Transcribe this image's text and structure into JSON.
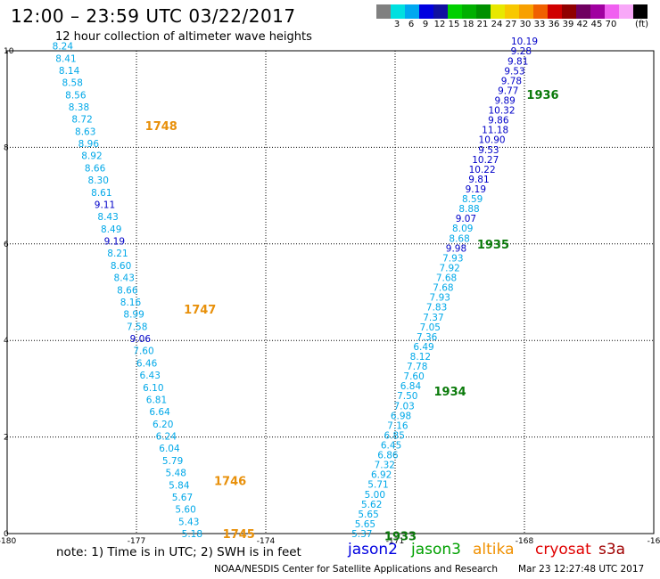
{
  "title": "12:00 – 23:59 UTC 03/22/2017",
  "subtitle": "12 hour collection of altimeter wave heights",
  "colorbar": {
    "colors": [
      "#808080",
      "#00e0e0",
      "#00a8f0",
      "#0000e0",
      "#1010a0",
      "#00d000",
      "#00b000",
      "#009000",
      "#e8e800",
      "#f8c800",
      "#f8a000",
      "#f06000",
      "#d00000",
      "#900000",
      "#700060",
      "#a000a0",
      "#f060f0",
      "#f8a8f8",
      "#000000"
    ],
    "labels": [
      "3",
      "6",
      "9",
      "12",
      "15",
      "18",
      "21",
      "24",
      "27",
      "30",
      "33",
      "36",
      "39",
      "42",
      "45",
      "70"
    ],
    "unit": "(ft)"
  },
  "axes": {
    "x_ticks": [
      "-180",
      "-177",
      "-174",
      "-171",
      "-168",
      "-16"
    ],
    "y_ticks": [
      "10",
      "8",
      "6",
      "4",
      "2",
      "0"
    ],
    "xlim": [
      -180,
      -165
    ],
    "ylim": [
      0,
      10
    ]
  },
  "time_labels": [
    {
      "text": "1748",
      "color": "#e8900a",
      "lon": -176.8,
      "lat": 8.45
    },
    {
      "text": "1747",
      "color": "#e8900a",
      "lon": -175.9,
      "lat": 4.65
    },
    {
      "text": "1746",
      "color": "#e8900a",
      "lon": -175.2,
      "lat": 1.1
    },
    {
      "text": "1745",
      "color": "#e8900a",
      "lon": -175.0,
      "lat": 0.0
    },
    {
      "text": "1936",
      "color": "#0a7a0a",
      "lon": -167.95,
      "lat": 9.1
    },
    {
      "text": "1935",
      "color": "#0a7a0a",
      "lon": -169.1,
      "lat": 6.0
    },
    {
      "text": "1934",
      "color": "#0a7a0a",
      "lon": -170.1,
      "lat": 2.95
    },
    {
      "text": "1933",
      "color": "#0a7a0a",
      "lon": -171.25,
      "lat": -0.05
    }
  ],
  "tracks": {
    "altika_west": {
      "satellite": "altika",
      "lon_start": -178.71,
      "lon_end": -175.71,
      "lat_start": 10.1,
      "lat_end": 0.0,
      "values": [
        "8.24",
        "8.41",
        "8.14",
        "8.58",
        "8.56",
        "8.38",
        "8.72",
        "8.63",
        "8.96",
        "8.92",
        "8.66",
        "8.30",
        "8.61",
        "9.11",
        "8.43",
        "8.49",
        "9.19",
        "8.21",
        "8.60",
        "8.43",
        "8.66",
        "8.16",
        "8.99",
        "7.58",
        "9.06",
        "7.60",
        "6.46",
        "6.43",
        "6.10",
        "6.81",
        "6.64",
        "6.20",
        "6.24",
        "6.04",
        "5.79",
        "5.48",
        "5.84",
        "5.67",
        "5.60",
        "5.43",
        "5.18"
      ]
    },
    "jason3_east": {
      "satellite": "jason3",
      "lon_start": -168.0,
      "lon_end": -171.77,
      "lat_start": 10.2,
      "lat_end": 0.0,
      "values": [
        "10.19",
        "9.28",
        "9.81",
        "9.53",
        "9.78",
        "9.77",
        "9.89",
        "10.32",
        "9.86",
        "11.18",
        "10.90",
        "9.53",
        "10.27",
        "10.22",
        "9.81",
        "9.19",
        "8.59",
        "8.88",
        "9.07",
        "8.09",
        "8.68",
        "9.98",
        "7.93",
        "7.92",
        "7.68",
        "7.68",
        "7.93",
        "7.83",
        "7.37",
        "7.05",
        "7.36",
        "6.49",
        "8.12",
        "7.78",
        "7.60",
        "6.84",
        "7.50",
        "7.03",
        "6.98",
        "7.16",
        "6.85",
        "6.45",
        "6.86",
        "7.32",
        "6.92",
        "5.71",
        "5.00",
        "5.62",
        "5.65",
        "5.65",
        "5.37"
      ]
    }
  },
  "legend_note": "note: 1) Time is in UTC; 2) SWH is in feet",
  "satellites": [
    {
      "name": "jason2",
      "color": "#0000e0"
    },
    {
      "name": "jason3",
      "color": "#00a000"
    },
    {
      "name": "altika",
      "color": "#f09000"
    },
    {
      "name": "cryosat",
      "color": "#e00000"
    },
    {
      "name": "s3a",
      "color": "#a00000"
    }
  ],
  "credit": "NOAA/NESDIS Center for Satellite Applications and Research",
  "timestamp": "Mar 23 12:27:48 UTC 2017"
}
